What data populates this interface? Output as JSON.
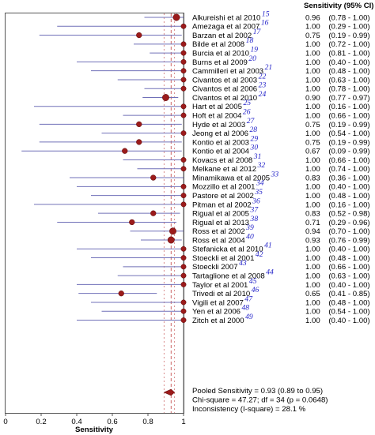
{
  "chart_data": {
    "type": "forest",
    "header": "Sensitivity (95% CI)",
    "xlabel": "Sensitivity",
    "xlim": [
      0,
      1
    ],
    "xticks": [
      "0",
      "0.2",
      "0.4",
      "0.6",
      "0.8",
      "1"
    ],
    "pooled_value": 0.93,
    "colors": {
      "ci_line": "#7070b8",
      "point": "#9b1b1b",
      "ref_line": "#c04040",
      "ref_text": "#1f1fc8"
    },
    "studies": [
      {
        "name": "Alkureishi et al 2010",
        "ref": "15",
        "est": 0.96,
        "lo": 0.78,
        "hi": 1.0,
        "text": "0.96    (0.78 - 1.00)"
      },
      {
        "name": "Amezaga et al 2007",
        "ref": "16",
        "est": 1.0,
        "lo": 0.29,
        "hi": 1.0,
        "text": "1.00    (0.29 - 1.00)"
      },
      {
        "name": "Barzan et al 2002",
        "ref": "17",
        "est": 0.75,
        "lo": 0.19,
        "hi": 0.99,
        "text": "0.75    (0.19 - 0.99)"
      },
      {
        "name": "Bilde et al 2008",
        "ref": "18",
        "est": 1.0,
        "lo": 0.72,
        "hi": 1.0,
        "text": "1.00    (0.72 - 1.00)"
      },
      {
        "name": "Burcia et al 2010",
        "ref": "19",
        "est": 1.0,
        "lo": 0.81,
        "hi": 1.0,
        "text": "1.00    (0.81 - 1.00)"
      },
      {
        "name": "Burns et al 2009",
        "ref": "20",
        "est": 1.0,
        "lo": 0.4,
        "hi": 1.0,
        "text": "1.00    (0.40 - 1.00)"
      },
      {
        "name": "Cammilleri et al 2003",
        "ref": "21",
        "est": 1.0,
        "lo": 0.48,
        "hi": 1.0,
        "text": "1.00    (0.48 - 1.00)"
      },
      {
        "name": "Civantos et al 2003",
        "ref": "22",
        "est": 1.0,
        "lo": 0.63,
        "hi": 1.0,
        "text": "1.00    (0.63 - 1.00)"
      },
      {
        "name": "Civantos et al 2006",
        "ref": "23",
        "est": 1.0,
        "lo": 0.78,
        "hi": 1.0,
        "text": "1.00    (0.78 - 1.00)"
      },
      {
        "name": "Civantos et al 2010",
        "ref": "24",
        "est": 0.9,
        "lo": 0.77,
        "hi": 0.97,
        "text": "0.90    (0.77 - 0.97)"
      },
      {
        "name": "Hart et al 2005",
        "ref": "25",
        "est": 1.0,
        "lo": 0.16,
        "hi": 1.0,
        "text": "1.00    (0.16 - 1.00)"
      },
      {
        "name": "Hoft et al 2004",
        "ref": "26",
        "est": 1.0,
        "lo": 0.66,
        "hi": 1.0,
        "text": "1.00    (0.66 - 1.00)"
      },
      {
        "name": "Hyde et al 2003",
        "ref": "27",
        "est": 0.75,
        "lo": 0.19,
        "hi": 0.99,
        "text": "0.75    (0.19 - 0.99)"
      },
      {
        "name": "Jeong et al 2006",
        "ref": "28",
        "est": 1.0,
        "lo": 0.54,
        "hi": 1.0,
        "text": "1.00    (0.54 - 1.00)"
      },
      {
        "name": "Kontio et al 2003",
        "ref": "29",
        "est": 0.75,
        "lo": 0.19,
        "hi": 0.99,
        "text": "0.75    (0.19 - 0.99)"
      },
      {
        "name": "Kontio et al 2004",
        "ref": "30",
        "est": 0.67,
        "lo": 0.09,
        "hi": 0.99,
        "text": "0.67    (0.09 - 0.99)"
      },
      {
        "name": "Kovacs et al 2008",
        "ref": "31",
        "est": 1.0,
        "lo": 0.66,
        "hi": 1.0,
        "text": "1.00    (0.66 - 1.00)"
      },
      {
        "name": "Melkane et al 2012",
        "ref": "32",
        "est": 1.0,
        "lo": 0.74,
        "hi": 1.0,
        "text": "1.00    (0.74 - 1.00)"
      },
      {
        "name": "Minamikawa et al 2005",
        "ref": "33",
        "est": 0.83,
        "lo": 0.36,
        "hi": 1.0,
        "text": "0.83    (0.36 - 1.00)"
      },
      {
        "name": "Mozzillo et al 2001",
        "ref": "34",
        "est": 1.0,
        "lo": 0.4,
        "hi": 1.0,
        "text": "1.00    (0.40 - 1.00)"
      },
      {
        "name": "Pastore et al 2002",
        "ref": "35",
        "est": 1.0,
        "lo": 0.48,
        "hi": 1.0,
        "text": "1.00    (0.48 - 1.00)"
      },
      {
        "name": "Pitman et al 2002",
        "ref": "36",
        "est": 1.0,
        "lo": 0.16,
        "hi": 1.0,
        "text": "1.00    (0.16 - 1.00)"
      },
      {
        "name": "Rigual et al 2005",
        "ref": "37",
        "est": 0.83,
        "lo": 0.52,
        "hi": 0.98,
        "text": "0.83    (0.52 - 0.98)"
      },
      {
        "name": "Rigual et al 2013",
        "ref": "38",
        "est": 0.71,
        "lo": 0.29,
        "hi": 0.96,
        "text": "0.71    (0.29 - 0.96)"
      },
      {
        "name": "Ross et al 2002",
        "ref": "39",
        "est": 0.94,
        "lo": 0.7,
        "hi": 1.0,
        "text": "0.94    (0.70 - 1.00)"
      },
      {
        "name": "Ross et al 2004",
        "ref": "40",
        "est": 0.93,
        "lo": 0.76,
        "hi": 0.99,
        "text": "0.93    (0.76 - 0.99)"
      },
      {
        "name": "Stefanicka et al 2010",
        "ref": "41",
        "est": 1.0,
        "lo": 0.4,
        "hi": 1.0,
        "text": "1.00    (0.40 - 1.00)"
      },
      {
        "name": "Stoeckli et al 2001",
        "ref": "42",
        "est": 1.0,
        "lo": 0.48,
        "hi": 1.0,
        "text": "1.00    (0.48 - 1.00)"
      },
      {
        "name": "Stoeckli 2007",
        "ref": "43",
        "est": 1.0,
        "lo": 0.66,
        "hi": 1.0,
        "text": "1.00    (0.66 - 1.00)"
      },
      {
        "name": "Tartaglione et al 2008",
        "ref": "44",
        "est": 1.0,
        "lo": 0.63,
        "hi": 1.0,
        "text": "1.00    (0.63 - 1.00)"
      },
      {
        "name": "Taylor et al 2001",
        "ref": "45",
        "est": 1.0,
        "lo": 0.4,
        "hi": 1.0,
        "text": "1.00    (0.40 - 1.00)"
      },
      {
        "name": "Trivedi et al 2010",
        "ref": "46",
        "est": 0.65,
        "lo": 0.41,
        "hi": 0.85,
        "text": "0.65    (0.41 - 0.85)"
      },
      {
        "name": "Vigili et al 2007",
        "ref": "47",
        "est": 1.0,
        "lo": 0.48,
        "hi": 1.0,
        "text": "1.00    (0.48 - 1.00)"
      },
      {
        "name": "Yen et al 2006",
        "ref": "48",
        "est": 1.0,
        "lo": 0.54,
        "hi": 1.0,
        "text": "1.00    (0.54 - 1.00)"
      },
      {
        "name": "Zitch et al 2000",
        "ref": "49",
        "est": 1.0,
        "lo": 0.4,
        "hi": 1.0,
        "text": "1.00    (0.40 - 1.00)"
      }
    ],
    "pooled": {
      "est": 0.93,
      "lo": 0.89,
      "hi": 0.95
    },
    "summary_lines": [
      "Pooled Sensitivity = 0.93 (0.89 to 0.95)",
      "Chi-square = 47.27; df =  34 (p = 0.0648)",
      "Inconsistency (I-square) = 28.1 %"
    ]
  }
}
